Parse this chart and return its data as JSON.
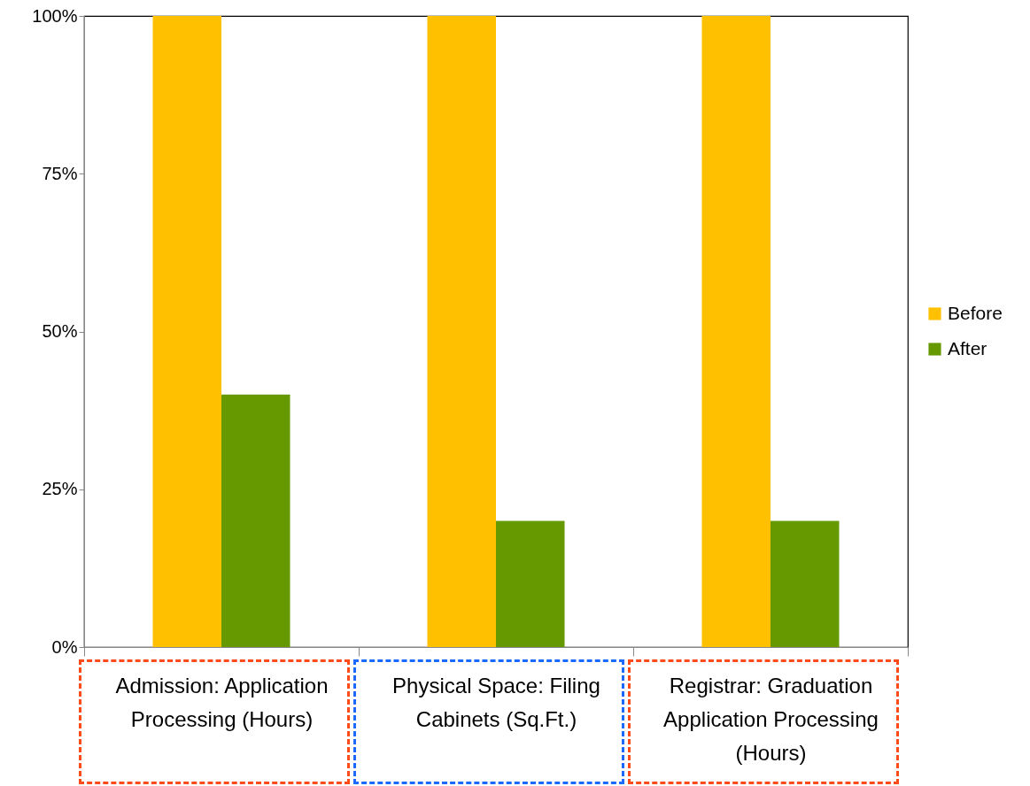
{
  "chart_data": {
    "type": "bar",
    "categories": [
      "Admission: Application Processing (Hours)",
      "Physical Space: Filing Cabinets (Sq.Ft.)",
      "Registrar: Graduation Application Processing (Hours)"
    ],
    "series": [
      {
        "name": "Before",
        "color": "#ffc000",
        "values": [
          100,
          100,
          100
        ]
      },
      {
        "name": "After",
        "color": "#669900",
        "values": [
          40,
          20,
          20
        ]
      }
    ],
    "ylim": [
      0,
      100
    ],
    "yticks": [
      {
        "value": 0,
        "label": "0%"
      },
      {
        "value": 25,
        "label": "25%"
      },
      {
        "value": 50,
        "label": "50%"
      },
      {
        "value": 75,
        "label": "75%"
      },
      {
        "value": 100,
        "label": "100%"
      }
    ],
    "legend": "right"
  }
}
